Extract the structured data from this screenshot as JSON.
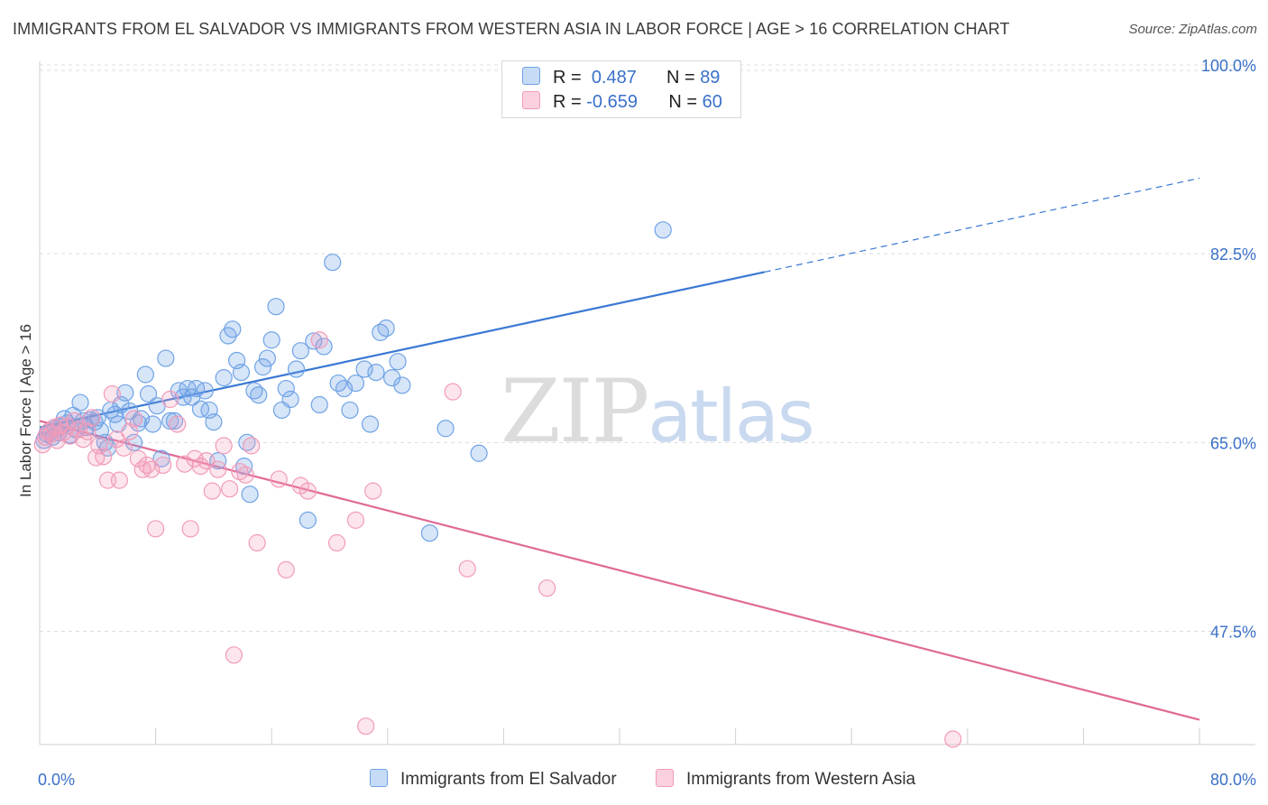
{
  "header": {
    "title": "IMMIGRANTS FROM EL SALVADOR VS IMMIGRANTS FROM WESTERN ASIA IN LABOR FORCE | AGE > 16 CORRELATION CHART",
    "source": "Source: ZipAtlas.com"
  },
  "watermark": {
    "zip": "ZIP",
    "atlas": "atlas"
  },
  "legend": {
    "r_label": "R =",
    "n_label": "N =",
    "rows": [
      {
        "r": "0.487",
        "n": "89",
        "color": "#6fa3e6"
      },
      {
        "r": "-0.659",
        "n": "60",
        "color": "#f29bb8"
      }
    ]
  },
  "bottom_legend": [
    {
      "label": "Immigrants from El Salvador",
      "color": "#6fa3e6"
    },
    {
      "label": "Immigrants from Western Asia",
      "color": "#f29bb8"
    }
  ],
  "chart_data": {
    "type": "scatter",
    "ylabel": "In Labor Force | Age > 16",
    "xlim": [
      0,
      80
    ],
    "ylim": [
      37,
      101
    ],
    "x_tick_labels": [
      {
        "v": 0,
        "label": "0.0%"
      },
      {
        "v": 80,
        "label": "80.0%"
      }
    ],
    "y_ticks": [
      {
        "v": 100,
        "label": "100.0%"
      },
      {
        "v": 82.5,
        "label": "82.5%"
      },
      {
        "v": 65,
        "label": "65.0%"
      },
      {
        "v": 47.5,
        "label": "47.5%"
      }
    ],
    "series": [
      {
        "name": "Immigrants from El Salvador",
        "color": "#6fa3e6",
        "points": [
          [
            0.3,
            65.2
          ],
          [
            0.5,
            65.8
          ],
          [
            0.7,
            66.0
          ],
          [
            0.9,
            65.5
          ],
          [
            1.1,
            66.3
          ],
          [
            1.3,
            65.9
          ],
          [
            1.5,
            66.5
          ],
          [
            1.7,
            67.2
          ],
          [
            1.9,
            66.8
          ],
          [
            2.1,
            65.7
          ],
          [
            2.3,
            67.5
          ],
          [
            2.5,
            66.2
          ],
          [
            2.8,
            68.7
          ],
          [
            3.0,
            67.0
          ],
          [
            3.2,
            66.4
          ],
          [
            3.5,
            67.1
          ],
          [
            3.8,
            66.9
          ],
          [
            4.0,
            67.3
          ],
          [
            4.2,
            66.1
          ],
          [
            4.5,
            65.0
          ],
          [
            4.7,
            64.5
          ],
          [
            4.9,
            68.0
          ],
          [
            5.2,
            67.6
          ],
          [
            5.4,
            66.7
          ],
          [
            5.6,
            68.5
          ],
          [
            5.9,
            69.6
          ],
          [
            6.2,
            67.9
          ],
          [
            6.5,
            65.0
          ],
          [
            6.8,
            66.8
          ],
          [
            7.0,
            67.2
          ],
          [
            7.3,
            71.3
          ],
          [
            7.5,
            69.5
          ],
          [
            7.8,
            66.7
          ],
          [
            8.1,
            68.4
          ],
          [
            8.4,
            63.5
          ],
          [
            8.7,
            72.8
          ],
          [
            9.0,
            67.0
          ],
          [
            9.3,
            67.0
          ],
          [
            9.6,
            69.8
          ],
          [
            9.9,
            69.2
          ],
          [
            10.2,
            70.0
          ],
          [
            10.5,
            69.2
          ],
          [
            10.8,
            70.0
          ],
          [
            11.1,
            68.1
          ],
          [
            11.4,
            69.8
          ],
          [
            11.7,
            68.0
          ],
          [
            12.0,
            66.9
          ],
          [
            12.3,
            63.3
          ],
          [
            12.7,
            71.0
          ],
          [
            13.0,
            74.9
          ],
          [
            13.3,
            75.5
          ],
          [
            13.6,
            72.6
          ],
          [
            13.9,
            71.5
          ],
          [
            14.1,
            62.8
          ],
          [
            14.3,
            65.0
          ],
          [
            14.5,
            60.2
          ],
          [
            14.8,
            69.8
          ],
          [
            15.1,
            69.4
          ],
          [
            15.4,
            72.0
          ],
          [
            15.7,
            72.8
          ],
          [
            16.0,
            74.5
          ],
          [
            16.3,
            77.6
          ],
          [
            16.7,
            68.0
          ],
          [
            17.0,
            70.0
          ],
          [
            17.3,
            69.0
          ],
          [
            17.7,
            71.8
          ],
          [
            18.0,
            73.5
          ],
          [
            18.5,
            57.8
          ],
          [
            18.9,
            74.4
          ],
          [
            19.3,
            68.5
          ],
          [
            19.6,
            73.9
          ],
          [
            20.2,
            81.7
          ],
          [
            20.6,
            70.5
          ],
          [
            21.0,
            70.0
          ],
          [
            21.4,
            68.0
          ],
          [
            21.8,
            70.5
          ],
          [
            22.4,
            71.8
          ],
          [
            22.8,
            66.7
          ],
          [
            23.2,
            71.5
          ],
          [
            23.5,
            75.2
          ],
          [
            23.9,
            75.6
          ],
          [
            24.3,
            71.0
          ],
          [
            24.7,
            72.5
          ],
          [
            25.0,
            70.3
          ],
          [
            26.9,
            56.6
          ],
          [
            28.0,
            66.3
          ],
          [
            30.3,
            64.0
          ],
          [
            43.0,
            84.7
          ]
        ]
      },
      {
        "name": "Immigrants from Western Asia",
        "color": "#f29bb8",
        "points": [
          [
            0.2,
            64.8
          ],
          [
            0.4,
            65.5
          ],
          [
            0.6,
            66.0
          ],
          [
            0.8,
            65.8
          ],
          [
            1.0,
            66.4
          ],
          [
            1.2,
            65.2
          ],
          [
            1.4,
            66.6
          ],
          [
            1.6,
            65.9
          ],
          [
            1.9,
            66.5
          ],
          [
            2.1,
            65.6
          ],
          [
            2.4,
            67.0
          ],
          [
            2.7,
            66.2
          ],
          [
            3.0,
            65.3
          ],
          [
            3.3,
            66.0
          ],
          [
            3.6,
            67.3
          ],
          [
            3.9,
            63.6
          ],
          [
            4.1,
            64.7
          ],
          [
            4.4,
            63.7
          ],
          [
            4.7,
            61.5
          ],
          [
            5.0,
            69.5
          ],
          [
            5.3,
            65.3
          ],
          [
            5.5,
            61.5
          ],
          [
            5.8,
            64.5
          ],
          [
            6.2,
            66.0
          ],
          [
            6.5,
            67.2
          ],
          [
            6.8,
            63.5
          ],
          [
            7.1,
            62.5
          ],
          [
            7.4,
            62.9
          ],
          [
            7.7,
            62.5
          ],
          [
            8.0,
            57.0
          ],
          [
            8.5,
            62.9
          ],
          [
            9.0,
            69.0
          ],
          [
            9.5,
            66.7
          ],
          [
            10.0,
            63.0
          ],
          [
            10.4,
            57.0
          ],
          [
            10.7,
            63.5
          ],
          [
            11.1,
            62.8
          ],
          [
            11.5,
            63.3
          ],
          [
            11.9,
            60.5
          ],
          [
            12.3,
            62.5
          ],
          [
            12.7,
            64.7
          ],
          [
            13.1,
            60.7
          ],
          [
            13.4,
            45.3
          ],
          [
            13.8,
            62.3
          ],
          [
            14.2,
            62.0
          ],
          [
            14.6,
            64.7
          ],
          [
            15.0,
            55.7
          ],
          [
            16.5,
            61.6
          ],
          [
            17.0,
            53.2
          ],
          [
            18.0,
            61.0
          ],
          [
            18.5,
            60.5
          ],
          [
            19.3,
            74.5
          ],
          [
            20.5,
            55.7
          ],
          [
            21.8,
            57.8
          ],
          [
            22.5,
            38.7
          ],
          [
            23.0,
            60.5
          ],
          [
            28.5,
            69.7
          ],
          [
            29.5,
            53.3
          ],
          [
            35.0,
            51.5
          ],
          [
            63.0,
            37.5
          ]
        ]
      }
    ],
    "trend_lines": [
      {
        "series": "Immigrants from El Salvador",
        "color": "#3a78d4",
        "x1": 0,
        "y1": 66.4,
        "x2": 50,
        "y2": 80.8,
        "dash_x2": 80,
        "dash_y2": 89.5
      },
      {
        "series": "Immigrants from Western Asia",
        "color": "#e06a96",
        "x1": 0,
        "y1": 67.0,
        "x2": 80,
        "y2": 39.3
      }
    ]
  }
}
